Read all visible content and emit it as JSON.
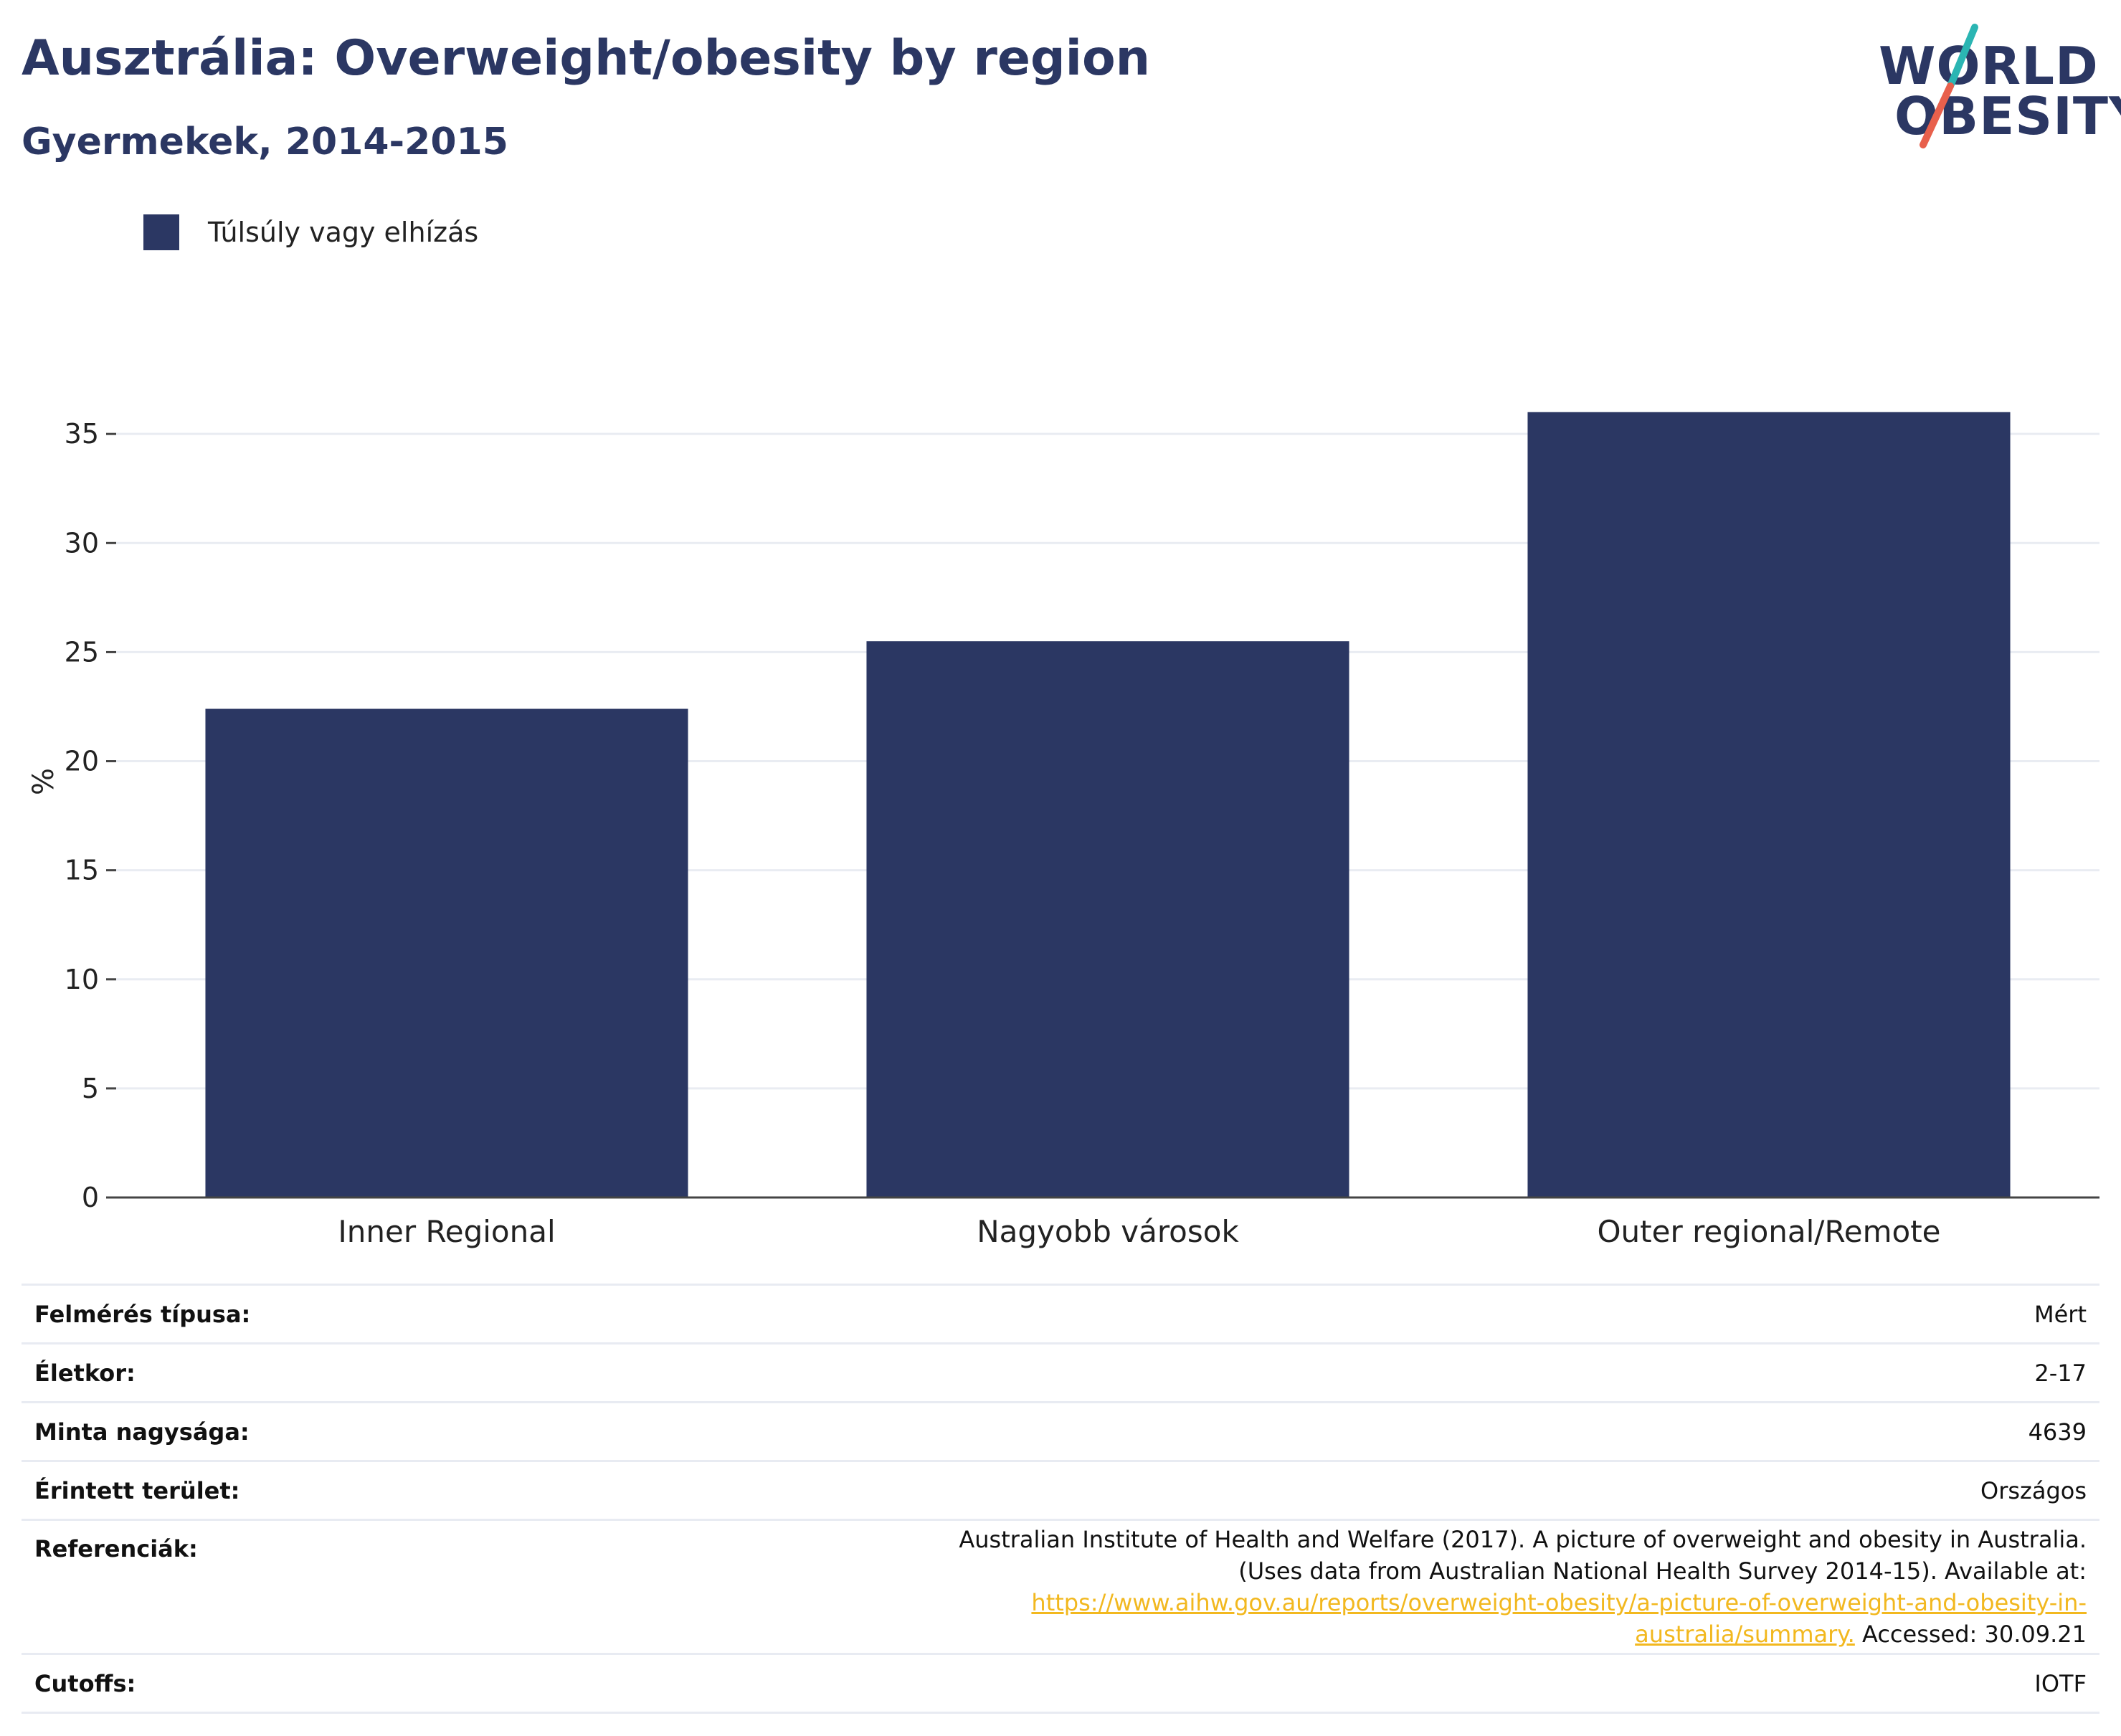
{
  "title": "Ausztrália: Overweight/obesity by region",
  "subtitle": "Gyermekek, 2014-2015",
  "logo": {
    "line1": "WORLD",
    "line2": "OBESITY",
    "accent_colors": [
      "#2bb5b3",
      "#e8604c"
    ]
  },
  "legend": {
    "label": "Túlsúly vagy elhízás",
    "color": "#2b3763"
  },
  "chart_data": {
    "type": "bar",
    "categories": [
      "Inner Regional",
      "Nagyobb városok",
      "Outer regional/Remote"
    ],
    "series": [
      {
        "name": "Túlsúly vagy elhízás",
        "values": [
          22.4,
          25.5,
          36.0
        ]
      }
    ],
    "ylabel": "%",
    "xlabel": "",
    "ylim": [
      0,
      37.8
    ],
    "yticks": [
      0,
      5,
      10,
      15,
      20,
      25,
      30,
      35
    ],
    "grid": true,
    "bar_color": "#2b3763",
    "legend_position": "top-left"
  },
  "info": {
    "survey_type": {
      "label": "Felmérés típusa:",
      "value": "Mért"
    },
    "age": {
      "label": "Életkor:",
      "value": "2-17"
    },
    "sample_size": {
      "label": "Minta nagysága:",
      "value": "4639"
    },
    "area": {
      "label": "Érintett terület:",
      "value": "Országos"
    },
    "references": {
      "label": "Referenciák:",
      "text_before": "Australian Institute of Health and Welfare (2017). A picture of overweight and obesity in Australia. (Uses data from Australian National Health Survey 2014-15). Available at: ",
      "link": "https://www.aihw.gov.au/reports/overweight-obesity/a-picture-of-overweight-and-obesity-in-australia/summary.",
      "text_after": " Accessed: 30.09.21"
    },
    "cutoffs": {
      "label": "Cutoffs:",
      "value": "IOTF"
    }
  }
}
